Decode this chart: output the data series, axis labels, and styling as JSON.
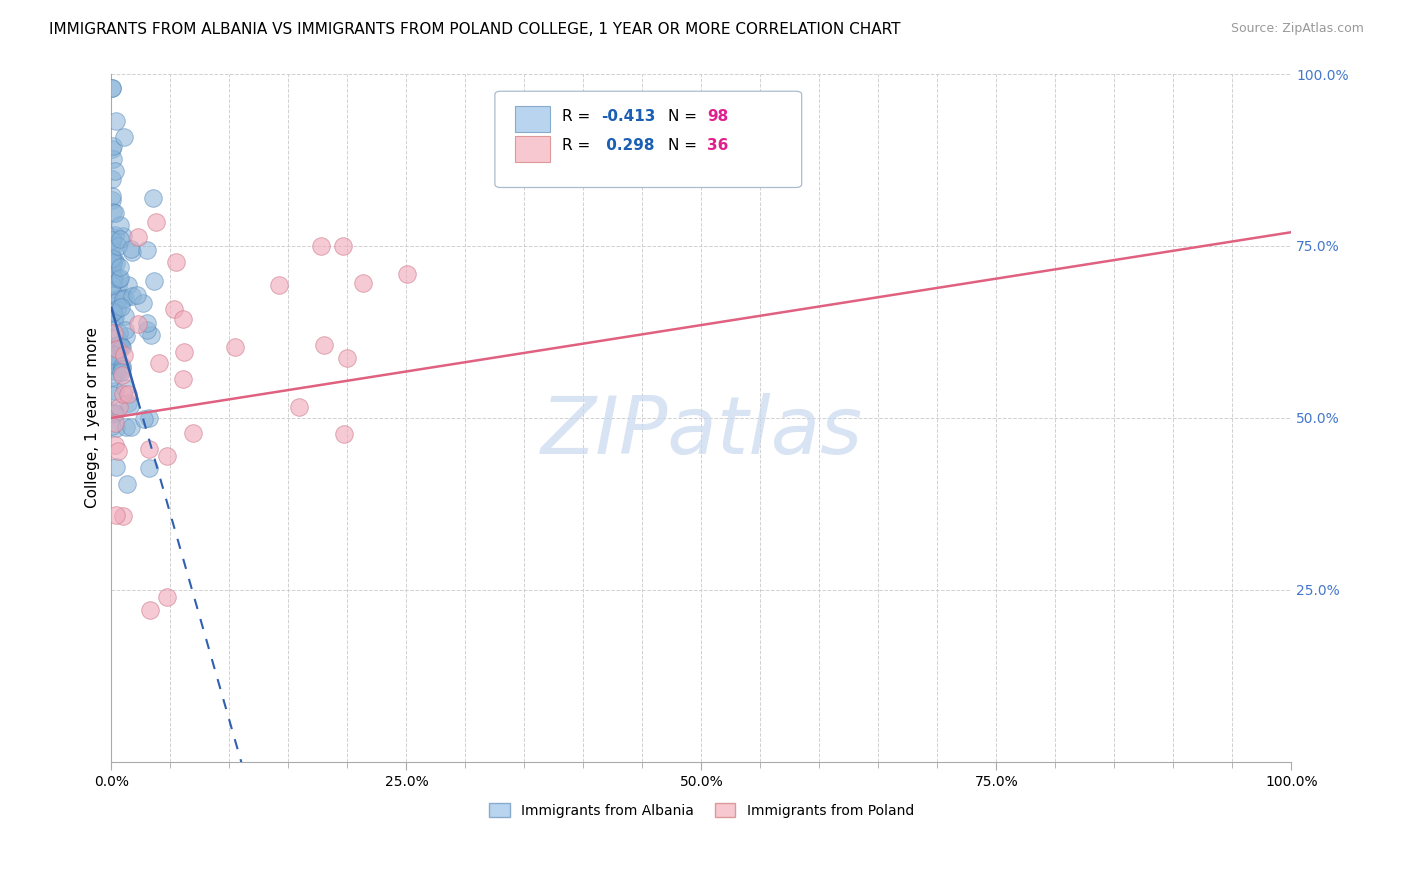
{
  "title": "IMMIGRANTS FROM ALBANIA VS IMMIGRANTS FROM POLAND COLLEGE, 1 YEAR OR MORE CORRELATION CHART",
  "source": "Source: ZipAtlas.com",
  "ylabel": "College, 1 year or more",
  "albania_color": "#8ab4d8",
  "albania_edge": "#5588bb",
  "poland_color": "#f0a8b8",
  "poland_edge": "#cc7788",
  "legend_albania_fill": "#b8d4ee",
  "legend_albania_edge": "#88aacc",
  "legend_poland_fill": "#f8c8d0",
  "legend_poland_edge": "#dd9999",
  "trend_albania_color": "#3060b0",
  "trend_poland_color": "#e06080",
  "R_albania": -0.413,
  "N_albania": 98,
  "R_poland": 0.298,
  "N_poland": 36,
  "r_text_color": "#1a5fb4",
  "n_text_color": "#e0208c",
  "watermark_color": "#c8d8ee",
  "grid_color": "#cccccc",
  "ytick_color": "#4477cc",
  "albania_seed": 42,
  "poland_seed": 123
}
